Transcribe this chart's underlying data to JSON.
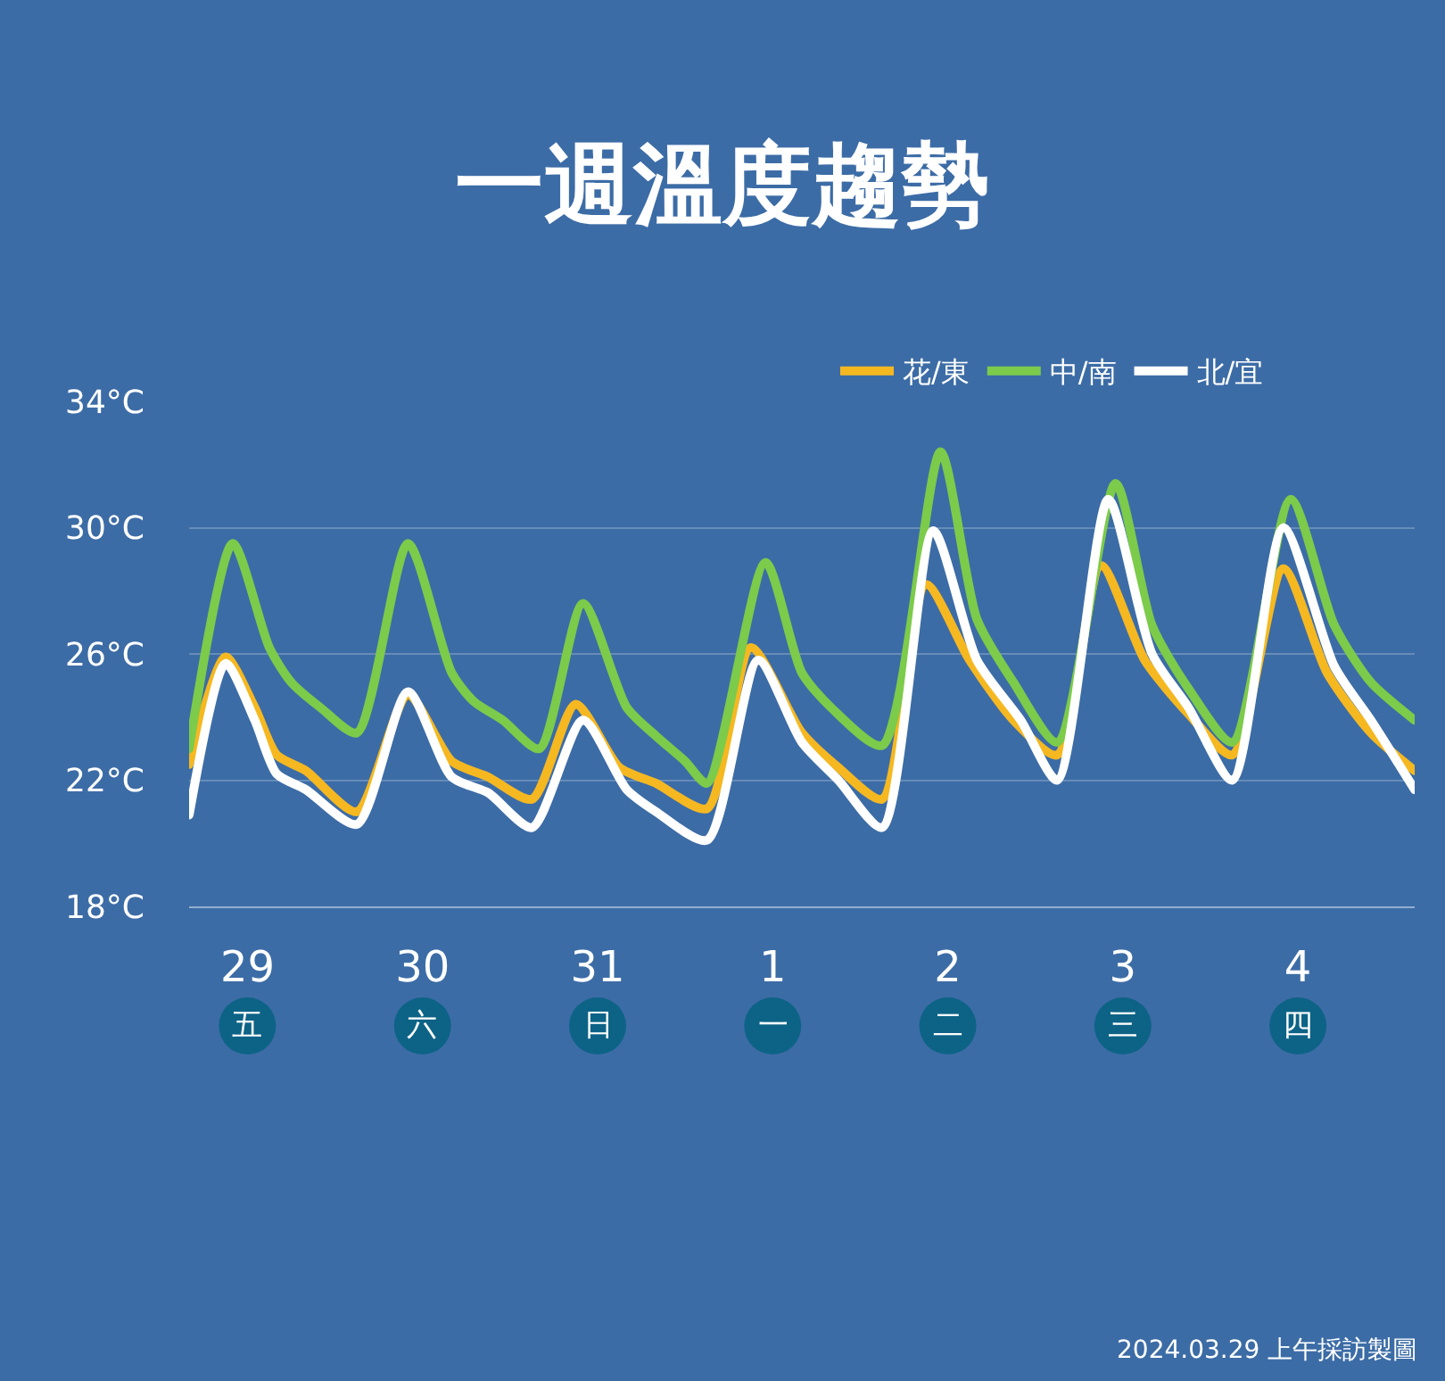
{
  "chart_data": {
    "type": "line",
    "title": "一週溫度趨勢",
    "xlim": [
      "2024-03-29T04:00",
      "2024-04-05T04:00"
    ],
    "xticks": [
      {
        "value": "2024-03-29T12:00",
        "label": "29"
      },
      {
        "value": "2024-03-30T12:00",
        "label": "30"
      },
      {
        "value": "2024-03-31T12:00",
        "label": "31"
      },
      {
        "value": "2024-04-01T12:00",
        "label": "1"
      },
      {
        "value": "2024-04-02T12:00",
        "label": "2"
      },
      {
        "value": "2024-04-03T12:00",
        "label": "3"
      },
      {
        "value": "2024-04-04T12:00",
        "label": "4"
      }
    ],
    "ylim": [
      18,
      34
    ],
    "yticks": [
      {
        "value": 18,
        "label": "18°C"
      },
      {
        "value": 22,
        "label": "22°C"
      },
      {
        "value": 26,
        "label": "26°C"
      },
      {
        "value": 30,
        "label": "30°C"
      },
      {
        "value": 34,
        "label": "34°C"
      }
    ],
    "grid": "y",
    "legend": "top right",
    "line_style": "solid",
    "series": [
      {
        "name": "花/東",
        "color": "#f5b821",
        "x": [
          "2024-03-29T04:00",
          "2024-03-29T09:00",
          "2024-03-29T13:00",
          "2024-03-29T16:00",
          "2024-03-29T20:00",
          "2024-03-30T03:00",
          "2024-03-30T10:00",
          "2024-03-30T16:00",
          "2024-03-30T21:00",
          "2024-03-31T03:00",
          "2024-03-31T09:00",
          "2024-03-31T15:00",
          "2024-03-31T20:00",
          "2024-04-01T03:00",
          "2024-04-01T09:00",
          "2024-04-01T16:00",
          "2024-04-01T21:00",
          "2024-04-02T03:00",
          "2024-04-02T09:00",
          "2024-04-02T15:00",
          "2024-04-02T21:00",
          "2024-04-03T03:00",
          "2024-04-03T09:00",
          "2024-04-03T15:00",
          "2024-04-03T21:00",
          "2024-04-04T03:00",
          "2024-04-04T10:00",
          "2024-04-04T16:00",
          "2024-04-04T22:00",
          "2024-04-05T04:00"
        ],
        "values": [
          22.5,
          25.9,
          24.3,
          22.8,
          22.3,
          21.0,
          24.7,
          22.6,
          22.1,
          21.4,
          24.4,
          22.4,
          21.9,
          21.1,
          26.2,
          23.5,
          22.4,
          21.4,
          28.2,
          25.8,
          23.9,
          22.8,
          28.8,
          25.8,
          24.1,
          22.8,
          28.7,
          25.4,
          23.5,
          22.3
        ]
      },
      {
        "name": "中/南",
        "color": "#7ccb4a",
        "x": [
          "2024-03-29T04:00",
          "2024-03-29T10:00",
          "2024-03-29T15:00",
          "2024-03-29T18:00",
          "2024-03-29T22:00",
          "2024-03-30T03:00",
          "2024-03-30T10:00",
          "2024-03-30T16:00",
          "2024-03-30T19:00",
          "2024-03-30T23:00",
          "2024-03-31T04:00",
          "2024-03-31T10:00",
          "2024-03-31T16:00",
          "2024-03-31T20:00",
          "2024-04-01T00:00",
          "2024-04-01T03:00",
          "2024-04-01T11:00",
          "2024-04-01T16:00",
          "2024-04-01T20:00",
          "2024-04-02T03:00",
          "2024-04-02T11:00",
          "2024-04-02T16:00",
          "2024-04-02T21:00",
          "2024-04-03T03:00",
          "2024-04-03T11:00",
          "2024-04-03T16:00",
          "2024-04-03T21:00",
          "2024-04-04T03:00",
          "2024-04-04T11:00",
          "2024-04-04T17:00",
          "2024-04-04T22:00",
          "2024-04-05T04:00"
        ],
        "values": [
          23.0,
          29.5,
          26.2,
          25.1,
          24.3,
          23.5,
          29.5,
          25.4,
          24.5,
          23.9,
          23.0,
          27.6,
          24.3,
          23.4,
          22.6,
          21.9,
          28.9,
          25.4,
          24.3,
          23.1,
          32.4,
          27.1,
          25.1,
          23.2,
          31.4,
          26.9,
          24.9,
          23.2,
          30.9,
          26.9,
          25.1,
          23.9
        ]
      },
      {
        "name": "北/宜",
        "color": "#ffffff",
        "x": [
          "2024-03-29T04:00",
          "2024-03-29T09:00",
          "2024-03-29T13:00",
          "2024-03-29T16:00",
          "2024-03-29T20:00",
          "2024-03-30T03:00",
          "2024-03-30T10:00",
          "2024-03-30T16:00",
          "2024-03-30T21:00",
          "2024-03-31T03:00",
          "2024-03-31T10:00",
          "2024-03-31T16:00",
          "2024-03-31T20:00",
          "2024-04-01T03:00",
          "2024-04-01T10:00",
          "2024-04-01T16:00",
          "2024-04-01T21:00",
          "2024-04-02T03:00",
          "2024-04-02T10:00",
          "2024-04-02T16:00",
          "2024-04-02T22:00",
          "2024-04-03T03:00",
          "2024-04-03T10:00",
          "2024-04-03T16:00",
          "2024-04-03T21:00",
          "2024-04-04T03:00",
          "2024-04-04T10:00",
          "2024-04-04T17:00",
          "2024-04-04T22:00",
          "2024-04-05T04:00"
        ],
        "values": [
          20.9,
          25.7,
          23.9,
          22.2,
          21.7,
          20.6,
          24.8,
          22.1,
          21.6,
          20.5,
          23.9,
          21.7,
          21.0,
          20.1,
          25.8,
          23.2,
          22.0,
          20.5,
          29.9,
          25.8,
          23.9,
          22.0,
          30.9,
          26.0,
          24.3,
          22.0,
          30.0,
          25.6,
          23.9,
          21.7
        ]
      }
    ],
    "annotations": [
      "五",
      "六",
      "日",
      "一",
      "二",
      "三",
      "四",
      "2024.03.29 上午採訪製圖"
    ]
  }
}
